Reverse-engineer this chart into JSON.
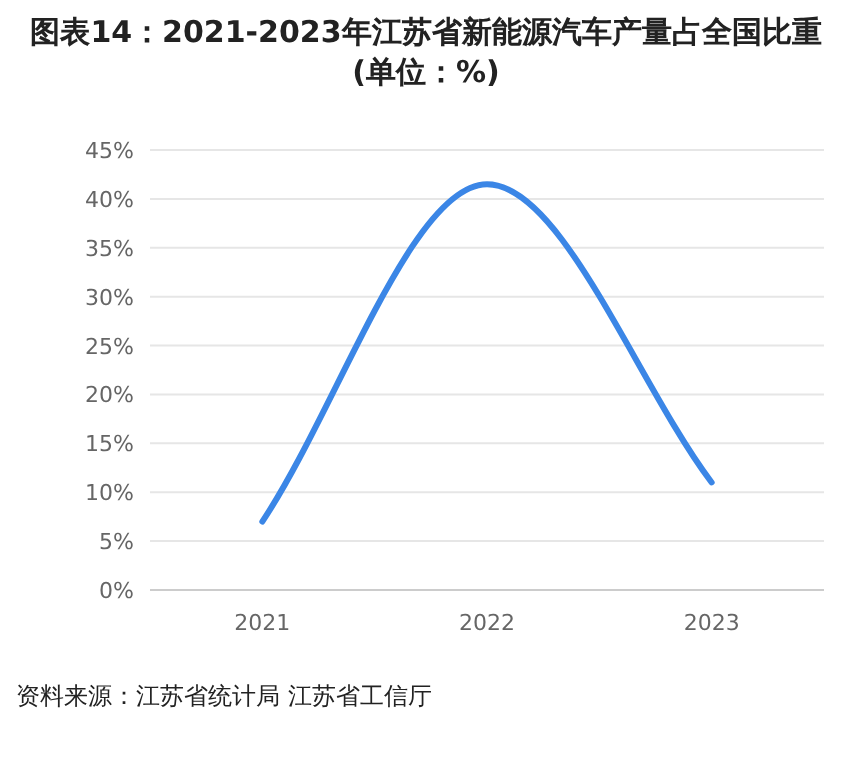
{
  "chart_data": {
    "type": "line",
    "title": "图表14：2021-2023年江苏省新能源汽车产量占全国比重(单位：%)",
    "categories": [
      "2021",
      "2022",
      "2023"
    ],
    "series": [
      {
        "color": "#3b86e6",
        "values": [
          7,
          41.5,
          11
        ]
      }
    ],
    "ylim": [
      0,
      45
    ],
    "yticks": [
      {
        "value": 0,
        "label": "0%"
      },
      {
        "value": 5,
        "label": "5%"
      },
      {
        "value": 10,
        "label": "10%"
      },
      {
        "value": 15,
        "label": "15%"
      },
      {
        "value": 20,
        "label": "20%"
      },
      {
        "value": 25,
        "label": "25%"
      },
      {
        "value": 30,
        "label": "30%"
      },
      {
        "value": 35,
        "label": "35%"
      },
      {
        "value": 40,
        "label": "40%"
      },
      {
        "value": 45,
        "label": "45%"
      }
    ],
    "grid": "y",
    "annotations": [
      "资料来源：江苏省统计局 江苏省工信厅"
    ]
  }
}
